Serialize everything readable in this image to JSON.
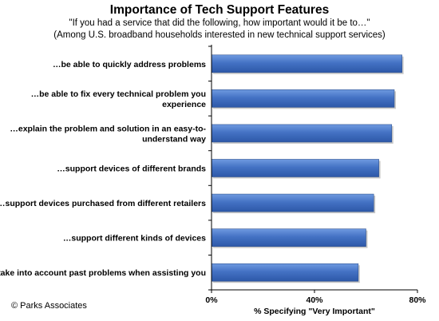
{
  "header": {
    "title": "Importance of Tech Support Features",
    "subtitle_line1": "\"If you had a service that did the following, how important would it be to…\"",
    "subtitle_line2": "(Among U.S. broadband households interested in new technical support services)"
  },
  "footer": {
    "copyright": "© Parks Associates"
  },
  "colors": {
    "bar_fill": "#4472C4",
    "bar_stroke": "#2F528F",
    "axis": "#000000"
  },
  "chart_data": {
    "type": "bar",
    "orientation": "horizontal",
    "title": "Importance of Tech Support Features",
    "xlabel": "% Specifying \"Very Important\"",
    "xlim": [
      0,
      80
    ],
    "x_ticks": [
      0,
      40,
      80
    ],
    "x_tick_labels": [
      "0%",
      "40%",
      "80%"
    ],
    "grid": false,
    "categories": [
      [
        "…be able to quickly address problems"
      ],
      [
        "…be able to fix every technical problem you",
        "experience"
      ],
      [
        "…explain the problem and solution in an easy-to-",
        "understand way"
      ],
      [
        "…support devices of different brands"
      ],
      [
        "…support devices purchased from different retailers"
      ],
      [
        "…support different kinds of devices"
      ],
      [
        "…take into account past problems when assisting you"
      ]
    ],
    "values": [
      74,
      71,
      70,
      65,
      63,
      60,
      57
    ]
  }
}
